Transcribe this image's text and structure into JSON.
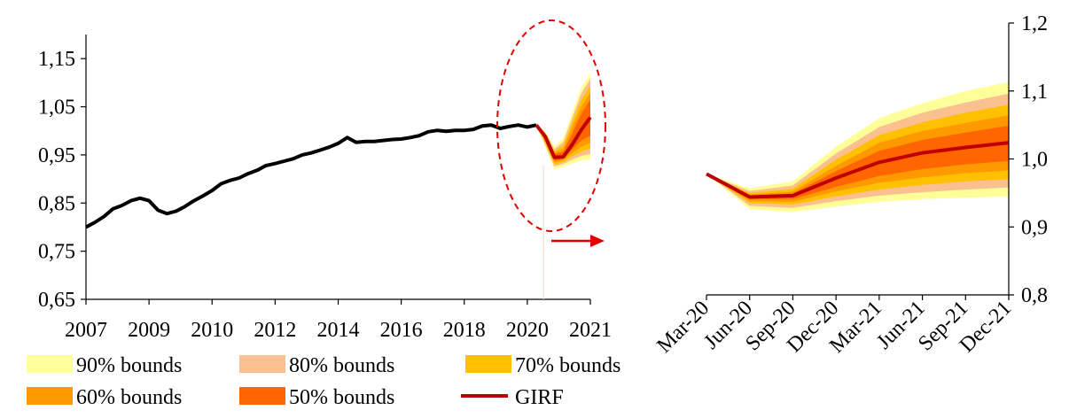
{
  "colors": {
    "band90": "#FFFF99",
    "band80": "#FAC090",
    "band70": "#FFC000",
    "band60": "#FF9900",
    "band50": "#FF6600",
    "girf": "#C00000",
    "history": "#000000",
    "highlight": "#E00000"
  },
  "chart_data": [
    {
      "type": "line",
      "name": "history",
      "ylim": [
        0.65,
        1.2
      ],
      "yticks": [
        0.65,
        0.75,
        0.85,
        0.95,
        1.05,
        1.15
      ],
      "ytick_labels": [
        "0,65",
        "0,75",
        "0,85",
        "0,95",
        "1,05",
        "1,15"
      ],
      "xlim": [
        2007,
        2021
      ],
      "xtick_labels": [
        "2007",
        "2009",
        "2010",
        "2012",
        "2014",
        "2016",
        "2018",
        "2020",
        "2021"
      ],
      "history": {
        "x": [
          2007.0,
          2007.25,
          2007.5,
          2007.75,
          2008.0,
          2008.25,
          2008.5,
          2008.75,
          2009.0,
          2009.25,
          2009.5,
          2009.75,
          2010.0,
          2010.25,
          2010.5,
          2010.75,
          2011.0,
          2011.25,
          2011.5,
          2011.75,
          2012.0,
          2012.25,
          2012.5,
          2012.75,
          2013.0,
          2013.25,
          2013.5,
          2013.75,
          2014.0,
          2014.25,
          2014.5,
          2014.75,
          2015.0,
          2015.25,
          2015.5,
          2015.75,
          2016.0,
          2016.25,
          2016.5,
          2016.75,
          2017.0,
          2017.25,
          2017.5,
          2017.75,
          2018.0,
          2018.25,
          2018.5,
          2018.75,
          2019.0,
          2019.25,
          2019.5
        ],
        "y": [
          0.8,
          0.81,
          0.822,
          0.838,
          0.845,
          0.855,
          0.86,
          0.855,
          0.835,
          0.828,
          0.833,
          0.843,
          0.855,
          0.865,
          0.876,
          0.89,
          0.897,
          0.902,
          0.911,
          0.918,
          0.928,
          0.932,
          0.937,
          0.942,
          0.95,
          0.954,
          0.96,
          0.966,
          0.974,
          0.986,
          0.976,
          0.978,
          0.978,
          0.98,
          0.982,
          0.983,
          0.986,
          0.99,
          0.998,
          1.001,
          0.999,
          1.001,
          1.001,
          1.003,
          1.01,
          1.012,
          1.005,
          1.009,
          1.012,
          1.008,
          1.012
        ]
      },
      "forecast": {
        "x": [
          2019.5,
          2019.75,
          2020.0,
          2020.25,
          2020.5,
          2020.75,
          2021.0
        ],
        "girf": [
          1.012,
          0.988,
          0.945,
          0.946,
          0.972,
          1.002,
          1.028
        ],
        "band90": {
          "lo": [
            1.012,
            0.965,
            0.92,
            0.925,
            0.932,
            0.938,
            0.94
          ],
          "hi": [
            1.012,
            1.0,
            0.968,
            0.985,
            1.04,
            1.09,
            1.12
          ]
        },
        "band80": {
          "lo": [
            1.012,
            0.97,
            0.926,
            0.931,
            0.94,
            0.948,
            0.952
          ],
          "hi": [
            1.012,
            0.996,
            0.962,
            0.977,
            1.028,
            1.078,
            1.108
          ]
        },
        "band70": {
          "lo": [
            1.012,
            0.974,
            0.93,
            0.935,
            0.947,
            0.957,
            0.963
          ],
          "hi": [
            1.012,
            0.993,
            0.958,
            0.97,
            1.018,
            1.064,
            1.094
          ]
        },
        "band60": {
          "lo": [
            1.012,
            0.978,
            0.934,
            0.939,
            0.954,
            0.967,
            0.975
          ],
          "hi": [
            1.012,
            0.991,
            0.954,
            0.963,
            1.008,
            1.05,
            1.08
          ]
        },
        "band50": {
          "lo": [
            1.012,
            0.982,
            0.938,
            0.942,
            0.962,
            0.98,
            0.99
          ],
          "hi": [
            1.012,
            0.99,
            0.951,
            0.957,
            0.995,
            1.036,
            1.065
          ]
        }
      }
    },
    {
      "type": "area",
      "name": "forecast-detail",
      "ylim": [
        0.8,
        1.2
      ],
      "yticks": [
        0.8,
        0.9,
        1.0,
        1.1,
        1.2
      ],
      "ytick_labels": [
        "0,8",
        "0,9",
        "1,0",
        "1,1",
        "1,2"
      ],
      "categories": [
        "Mar-20",
        "Jun-20",
        "Sep-20",
        "Dec-20",
        "Mar-21",
        "Jun-21",
        "Sep-21",
        "Dec-21"
      ],
      "girf": [
        0.978,
        0.944,
        0.946,
        0.972,
        0.995,
        1.009,
        1.017,
        1.024
      ],
      "band90": {
        "lo": [
          0.978,
          0.926,
          0.922,
          0.93,
          0.937,
          0.941,
          0.943,
          0.945
        ],
        "hi": [
          0.978,
          0.957,
          0.967,
          1.018,
          1.06,
          1.082,
          1.1,
          1.113
        ]
      },
      "band80": {
        "lo": [
          0.978,
          0.931,
          0.928,
          0.938,
          0.946,
          0.951,
          0.955,
          0.958
        ],
        "hi": [
          0.978,
          0.953,
          0.961,
          1.008,
          1.047,
          1.068,
          1.083,
          1.096
        ]
      },
      "band70": {
        "lo": [
          0.978,
          0.935,
          0.933,
          0.945,
          0.955,
          0.962,
          0.967,
          0.97
        ],
        "hi": [
          0.978,
          0.95,
          0.956,
          0.999,
          1.035,
          1.054,
          1.068,
          1.08
        ]
      },
      "band60": {
        "lo": [
          0.978,
          0.938,
          0.937,
          0.952,
          0.965,
          0.973,
          0.979,
          0.983
        ],
        "hi": [
          0.978,
          0.948,
          0.952,
          0.99,
          1.024,
          1.041,
          1.053,
          1.064
        ]
      },
      "band50": {
        "lo": [
          0.978,
          0.941,
          0.941,
          0.959,
          0.975,
          0.985,
          0.992,
          0.997
        ],
        "hi": [
          0.978,
          0.946,
          0.949,
          0.982,
          1.012,
          1.028,
          1.039,
          1.049
        ]
      }
    }
  ],
  "legend": {
    "position": "bottom-left",
    "items": [
      {
        "label": "90% bounds",
        "key": "band90",
        "kind": "swatch"
      },
      {
        "label": "80% bounds",
        "key": "band80",
        "kind": "swatch"
      },
      {
        "label": "70% bounds",
        "key": "band70",
        "kind": "swatch"
      },
      {
        "label": "60% bounds",
        "key": "band60",
        "kind": "swatch"
      },
      {
        "label": "50% bounds",
        "key": "band50",
        "kind": "swatch"
      },
      {
        "label": "GIRF",
        "key": "girf",
        "kind": "line"
      }
    ]
  }
}
